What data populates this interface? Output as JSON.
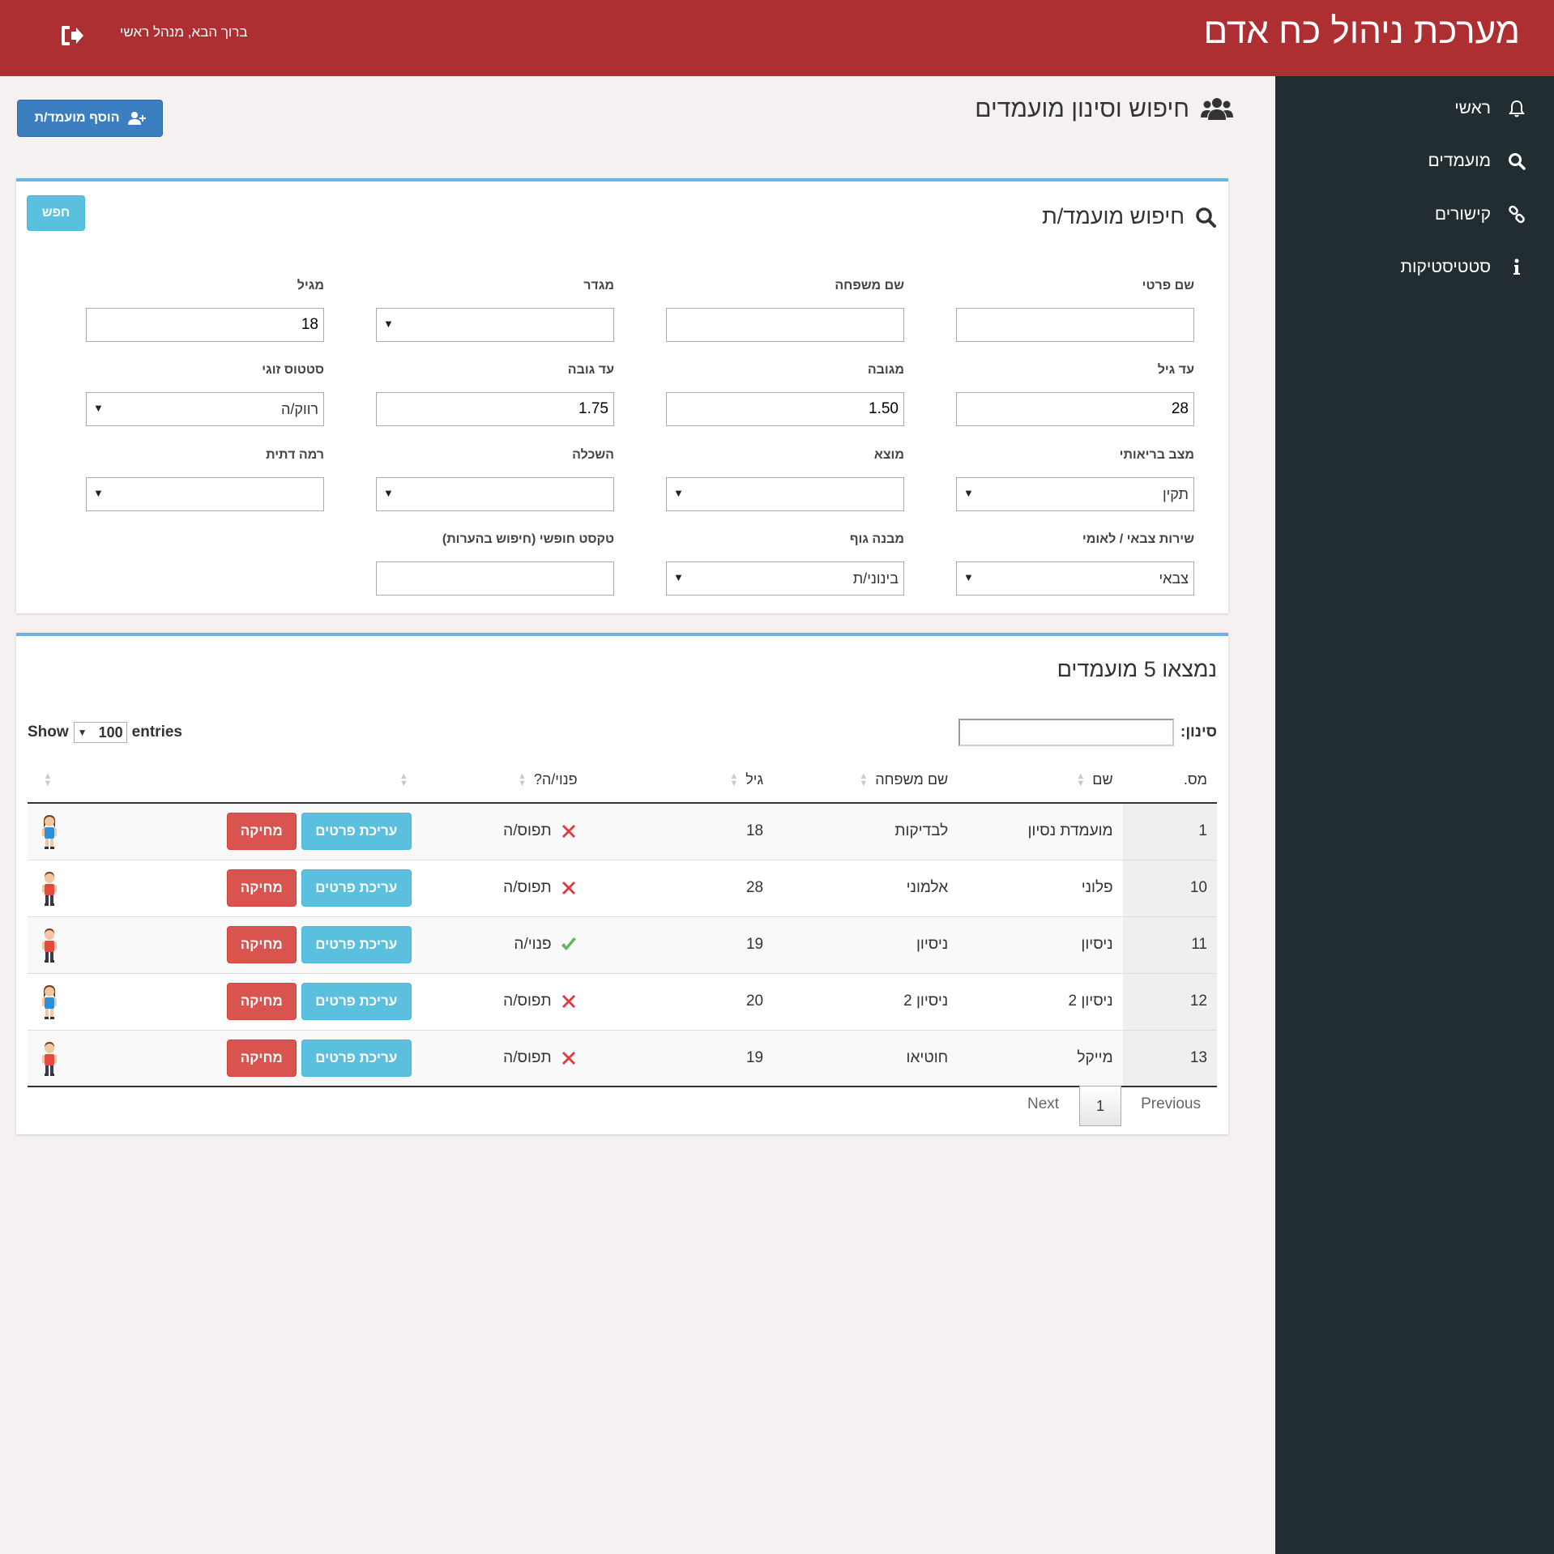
{
  "header": {
    "app_title": "מערכת ניהול כח אדם",
    "welcome": "ברוך הבא, מנהל ראשי",
    "logout_icon": "logout-icon"
  },
  "sidebar": {
    "items": [
      {
        "label": "ראשי",
        "icon": "bell-icon"
      },
      {
        "label": "מועמדים",
        "icon": "search-icon"
      },
      {
        "label": "קישורים",
        "icon": "link-icon"
      },
      {
        "label": "סטטיסטיקות",
        "icon": "info-icon"
      }
    ]
  },
  "page": {
    "title": "חיפוש וסינון מועמדים",
    "add_button": "הוסף מועמד/ת"
  },
  "search_panel": {
    "title": "חיפוש מועמד/ת",
    "search_button": "חפש",
    "fields": {
      "first_name": {
        "label": "שם פרטי",
        "value": ""
      },
      "last_name": {
        "label": "שם משפחה",
        "value": ""
      },
      "gender": {
        "label": "מגדר",
        "value": ""
      },
      "from_age": {
        "label": "מגיל",
        "value": "18"
      },
      "to_age": {
        "label": "עד גיל",
        "value": "28"
      },
      "from_height": {
        "label": "מגובה",
        "value": "1.50"
      },
      "to_height": {
        "label": "עד גובה",
        "value": "1.75"
      },
      "marital_status": {
        "label": "סטטוס זוגי",
        "value": "רווק/ה"
      },
      "health": {
        "label": "מצב בריאותי",
        "value": "תקין"
      },
      "origin": {
        "label": "מוצא",
        "value": ""
      },
      "education": {
        "label": "השכלה",
        "value": ""
      },
      "religious_level": {
        "label": "רמה דתית",
        "value": ""
      },
      "service": {
        "label": "שירות צבאי / לאומי",
        "value": "צבאי"
      },
      "body_build": {
        "label": "מבנה גוף",
        "value": "בינוני/ת"
      },
      "free_text": {
        "label": "טקסט חופשי (חיפוש בהערות)",
        "value": ""
      }
    }
  },
  "results": {
    "title": "נמצאו 5 מועמדים",
    "show_label": "Show",
    "entries_value": "100",
    "entries_label": "entries",
    "filter_label": "סינון:",
    "columns": {
      "num": "מס.",
      "name": "שם",
      "last_name": "שם משפחה",
      "age": "גיל",
      "available": "פנוי/ה?"
    },
    "edit_label": "עריכת פרטים",
    "delete_label": "מחיקה",
    "rows": [
      {
        "num": "1",
        "name": "מועמדת נסיון",
        "last_name": "לבדיקות",
        "age": "18",
        "status": "תפוס/ה",
        "available": false,
        "gender": "female"
      },
      {
        "num": "10",
        "name": "פלוני",
        "last_name": "אלמוני",
        "age": "28",
        "status": "תפוס/ה",
        "available": false,
        "gender": "male"
      },
      {
        "num": "11",
        "name": "ניסיון",
        "last_name": "ניסיון",
        "age": "19",
        "status": "פנוי/ה",
        "available": true,
        "gender": "male"
      },
      {
        "num": "12",
        "name": "ניסיון 2",
        "last_name": "ניסיון 2",
        "age": "20",
        "status": "תפוס/ה",
        "available": false,
        "gender": "female"
      },
      {
        "num": "13",
        "name": "מייקל",
        "last_name": "חוטיאו",
        "age": "19",
        "status": "תפוס/ה",
        "available": false,
        "gender": "male"
      }
    ],
    "pagination": {
      "previous": "Previous",
      "page": "1",
      "next": "Next"
    }
  },
  "colors": {
    "header": "#ad2f31",
    "sidebar": "#222d32",
    "primary": "#3c7fc0",
    "info": "#5bc0de",
    "danger": "#d9534f"
  }
}
